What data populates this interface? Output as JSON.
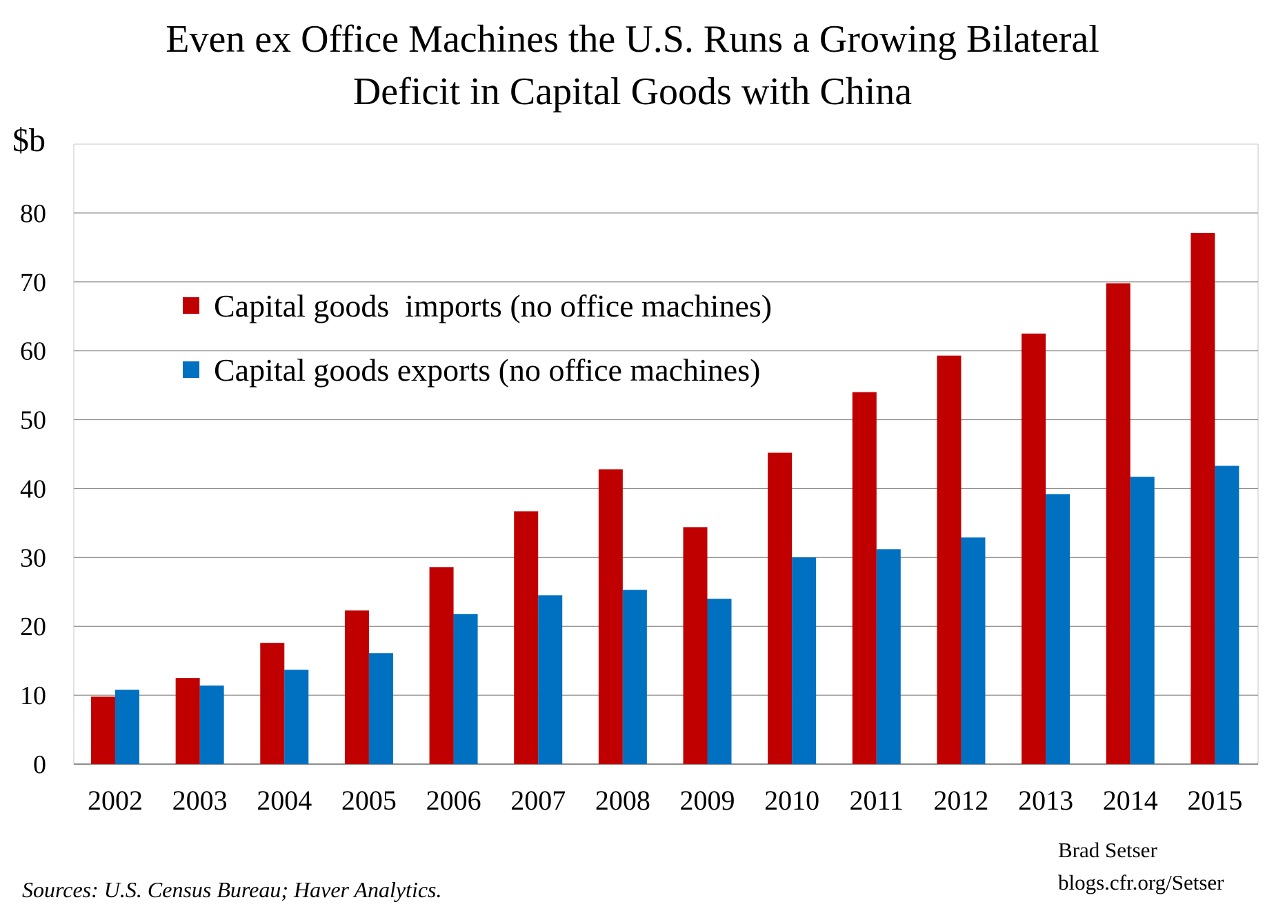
{
  "chart_data": {
    "type": "bar",
    "title_lines": [
      "Even ex Office Machines the U.S. Runs a Growing Bilateral",
      "Deficit in Capital Goods with China"
    ],
    "ylabel": "$b",
    "xlabel": "",
    "ylim": [
      0,
      90
    ],
    "yticks": [
      0,
      10,
      20,
      30,
      40,
      50,
      60,
      70,
      80
    ],
    "grid": true,
    "legend_position": "upper-left",
    "categories": [
      "2002",
      "2003",
      "2004",
      "2005",
      "2006",
      "2007",
      "2008",
      "2009",
      "2010",
      "2011",
      "2012",
      "2013",
      "2014",
      "2015"
    ],
    "series": [
      {
        "name": "Capital goods  imports (no office machines)",
        "color": "#C00000",
        "values": [
          9.8,
          12.5,
          17.6,
          22.3,
          28.6,
          36.7,
          42.8,
          34.4,
          45.2,
          54.0,
          59.3,
          62.5,
          69.8,
          77.1
        ]
      },
      {
        "name": "Capital goods exports (no office machines)",
        "color": "#0070C0",
        "values": [
          10.8,
          11.4,
          13.7,
          16.1,
          21.8,
          24.5,
          25.3,
          24.0,
          30.0,
          31.2,
          32.9,
          39.2,
          41.7,
          43.3
        ]
      }
    ]
  },
  "credit": {
    "name": "Brad Setser",
    "url": "blogs.cfr.org/Setser"
  },
  "source": "Sources: U.S. Census Bureau; Haver Analytics."
}
